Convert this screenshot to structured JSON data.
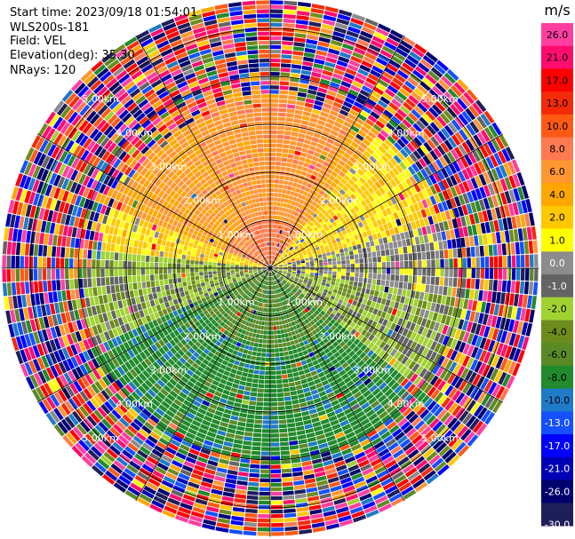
{
  "header": {
    "start_time": "Start time: 2023/09/18 01:54:01",
    "instrument": "WLS200s-181",
    "field": "Field: VEL",
    "elevation": "Elevation(deg): 35.30",
    "nrays": "NRays: 120"
  },
  "chart_data": {
    "type": "heatmap",
    "subtype": "polar-ppi",
    "units": "m/s",
    "nrays": 120,
    "elevation_deg": 35.3,
    "range_rings_km": [
      1.0,
      2.0,
      3.0,
      4.0,
      5.0
    ],
    "range_ring_labels": [
      "1.00km",
      "2.00km",
      "3.00km",
      "4.00km",
      "5.00km"
    ],
    "max_range_km": 5.6,
    "grid": true,
    "legend_position": "right",
    "colorbar": {
      "title": "m/s",
      "ticks": [
        "26.0",
        "21.0",
        "17.0",
        "13.0",
        "10.0",
        "8.0",
        "6.0",
        "4.0",
        "2.0",
        "1.0",
        "0.0",
        "-1.0",
        "-2.0",
        "-4.0",
        "-6.0",
        "-8.0",
        "-10.0",
        "-13.0",
        "-17.0",
        "-21.0",
        "-26.0",
        "-30.0"
      ],
      "bins": [
        {
          "min": 26,
          "max": 30,
          "color": "#ff3ea0"
        },
        {
          "min": 21,
          "max": 26,
          "color": "#ff0c6e"
        },
        {
          "min": 17,
          "max": 21,
          "color": "#ff0000"
        },
        {
          "min": 13,
          "max": 17,
          "color": "#f52a08"
        },
        {
          "min": 10,
          "max": 13,
          "color": "#ff5a14"
        },
        {
          "min": 8,
          "max": 10,
          "color": "#ff7a50"
        },
        {
          "min": 6,
          "max": 8,
          "color": "#ff9632"
        },
        {
          "min": 4,
          "max": 6,
          "color": "#ffa600"
        },
        {
          "min": 2,
          "max": 4,
          "color": "#ffc800"
        },
        {
          "min": 1,
          "max": 2,
          "color": "#ffff00"
        },
        {
          "min": 0,
          "max": 1,
          "color": "#8c8c8c"
        },
        {
          "min": -1,
          "max": 0,
          "color": "#646464"
        },
        {
          "min": -2,
          "max": -1,
          "color": "#a0d232"
        },
        {
          "min": -4,
          "max": -2,
          "color": "#6e8c1e"
        },
        {
          "min": -6,
          "max": -4,
          "color": "#5a8a26"
        },
        {
          "min": -8,
          "max": -6,
          "color": "#208a2c"
        },
        {
          "min": -10,
          "max": -8,
          "color": "#1e7bc8"
        },
        {
          "min": -13,
          "max": -10,
          "color": "#1450ff"
        },
        {
          "min": -17,
          "max": -13,
          "color": "#0000ff"
        },
        {
          "min": -21,
          "max": -17,
          "color": "#0000b4"
        },
        {
          "min": -26,
          "max": -21,
          "color": "#00006e"
        },
        {
          "min": -30,
          "max": -26,
          "color": "#1e1e5a"
        }
      ]
    },
    "velocity_structure": {
      "north_sector": {
        "azimuth_range_deg": [
          290,
          40
        ],
        "typical_ms": 7
      },
      "northeast_sector": {
        "azimuth_range_deg": [
          40,
          75
        ],
        "typical_ms": 2.5
      },
      "east_west_band": {
        "azimuth_range_deg": [
          75,
          100
        ],
        "typical_ms": 0.3
      },
      "southeast_sector": {
        "azimuth_range_deg": [
          100,
          130
        ],
        "typical_ms": -1.5
      },
      "south_sector": {
        "azimuth_range_deg": [
          130,
          245
        ],
        "typical_ms": -7
      },
      "southwest_sector": {
        "azimuth_range_deg": [
          245,
          275
        ],
        "typical_ms": -1.5
      },
      "west_band": {
        "azimuth_range_deg": [
          275,
          290
        ],
        "typical_ms": 2.5
      },
      "valid_range_km_north": 3.6,
      "valid_range_km_south": 4.0,
      "noise_beyond_range": true
    }
  }
}
